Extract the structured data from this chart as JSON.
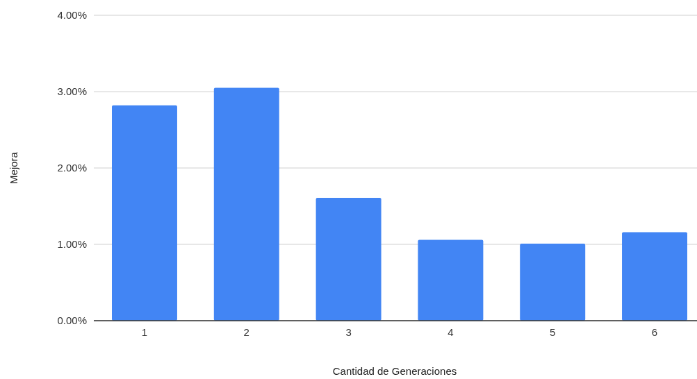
{
  "chart_data": {
    "type": "bar",
    "xlabel": "Cantidad de Generaciones",
    "ylabel": "Mejora",
    "categories": [
      "1",
      "2",
      "3",
      "4",
      "5",
      "6"
    ],
    "values": [
      2.82,
      3.05,
      1.61,
      1.06,
      1.01,
      1.16
    ],
    "color": "#4285f4",
    "ylim": [
      0,
      4
    ],
    "yticks": [
      {
        "value": 0,
        "label": "0.00%"
      },
      {
        "value": 1,
        "label": "1.00%"
      },
      {
        "value": 2,
        "label": "2.00%"
      },
      {
        "value": 3,
        "label": "3.00%"
      },
      {
        "value": 4,
        "label": "4.00%"
      }
    ],
    "grid": "y"
  }
}
